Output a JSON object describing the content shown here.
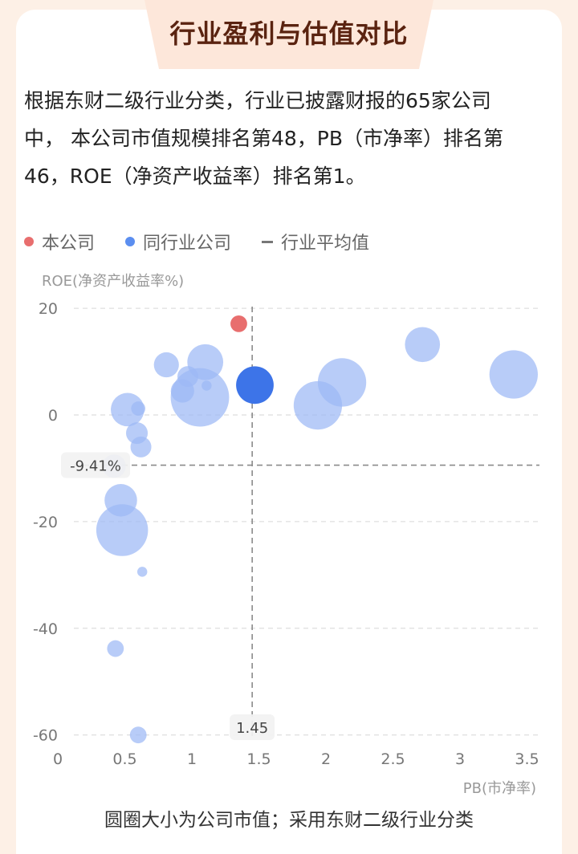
{
  "header": {
    "title": "行业盈利与估值对比"
  },
  "description": "根据东财二级行业分类，行业已披露财报的65家公司中， 本公司市值规模排名第48，PB（市净率）排名第46，ROE（净资产收益率）排名第1。",
  "legend": {
    "company": "本公司",
    "peers": "同行业公司",
    "average": "行业平均值"
  },
  "footnote": "圆圈大小为公司市值；采用东财二级行业分类",
  "colors": {
    "company": "#e86e6e",
    "peers": "#9cb9f5",
    "highlight": "#3d74e8",
    "gridline": "#d6d6d6",
    "average_line": "#8a8a8a"
  },
  "chart_data": {
    "type": "scatter",
    "ylabel": "ROE(净资产收益率%)",
    "xlabel": "PB(市净率)",
    "xlim": [
      0,
      3.6
    ],
    "ylim": [
      -62,
      22
    ],
    "x_ticks": [
      "0",
      "0.5",
      "1",
      "1.5",
      "2",
      "2.5",
      "3",
      "3.5"
    ],
    "x_tick_values": [
      0,
      0.5,
      1,
      1.5,
      2,
      2.5,
      3,
      3.5
    ],
    "y_ticks": [
      "20",
      "0",
      "-20",
      "-40",
      "-60"
    ],
    "y_tick_values": [
      20,
      0,
      -20,
      -40,
      -60
    ],
    "grid": "horizontal dashed",
    "legend_position": "top-left",
    "averages": {
      "pb": 1.45,
      "roe": -9.41,
      "pb_label": "1.45",
      "roe_label": "-9.41%"
    },
    "company": {
      "pb": 1.35,
      "roe": 17.1,
      "market_cap_relative": 0.2
    },
    "highlighted_peer": {
      "pb": 1.47,
      "roe": 5.6,
      "market_cap_relative": 0.45
    },
    "peers": [
      {
        "pb": 0.52,
        "roe": 1.0,
        "market_cap_relative": 0.4
      },
      {
        "pb": 0.6,
        "roe": 1.2,
        "market_cap_relative": 0.17
      },
      {
        "pb": 0.59,
        "roe": -3.4,
        "market_cap_relative": 0.26
      },
      {
        "pb": 0.62,
        "roe": -6.0,
        "market_cap_relative": 0.25
      },
      {
        "pb": 0.42,
        "roe": -9.6,
        "market_cap_relative": 0.28
      },
      {
        "pb": 0.47,
        "roe": -16.0,
        "market_cap_relative": 0.39
      },
      {
        "pb": 0.48,
        "roe": -21.6,
        "market_cap_relative": 0.62
      },
      {
        "pb": 0.63,
        "roe": -29.4,
        "market_cap_relative": 0.12
      },
      {
        "pb": 0.43,
        "roe": -43.8,
        "market_cap_relative": 0.2
      },
      {
        "pb": 0.6,
        "roe": -60.0,
        "market_cap_relative": 0.2
      },
      {
        "pb": 0.81,
        "roe": 9.4,
        "market_cap_relative": 0.3
      },
      {
        "pb": 0.97,
        "roe": 7.2,
        "market_cap_relative": 0.25
      },
      {
        "pb": 0.93,
        "roe": 4.5,
        "market_cap_relative": 0.28
      },
      {
        "pb": 1.1,
        "roe": 9.9,
        "market_cap_relative": 0.43
      },
      {
        "pb": 1.06,
        "roe": 3.3,
        "market_cap_relative": 0.7
      },
      {
        "pb": 1.11,
        "roe": 5.5,
        "market_cap_relative": 0.12
      },
      {
        "pb": 1.94,
        "roe": 1.8,
        "market_cap_relative": 0.58
      },
      {
        "pb": 2.12,
        "roe": 6.1,
        "market_cap_relative": 0.58
      },
      {
        "pb": 2.72,
        "roe": 13.2,
        "market_cap_relative": 0.42
      },
      {
        "pb": 3.4,
        "roe": 7.6,
        "market_cap_relative": 0.58
      }
    ]
  }
}
